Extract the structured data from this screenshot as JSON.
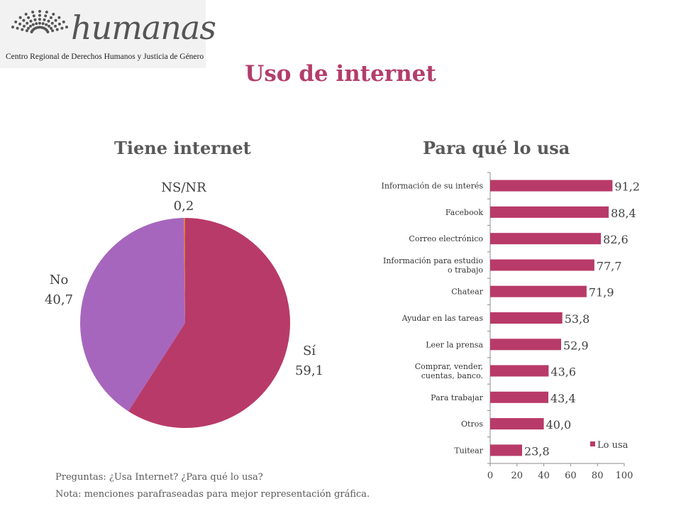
{
  "logo": {
    "word": "humanas",
    "subtitle": "Centro Regional de Derechos Humanos y Justicia de Género"
  },
  "title": "Uso de internet",
  "colors": {
    "title": "#b33d6b",
    "bar": "#b83a68",
    "pie_si": "#b83a68",
    "pie_no": "#a766bd",
    "pie_nsnr": "#e07b2a"
  },
  "notes": {
    "line1": "Preguntas: ¿Usa Internet? ¿Para qué lo usa?",
    "line2": "Nota: menciones parafraseadas para mejor representación gráfica."
  },
  "chart_data": [
    {
      "type": "pie",
      "title": "Tiene internet",
      "slices": [
        {
          "label": "Sí",
          "value": 59.1,
          "value_text": "59,1"
        },
        {
          "label": "No",
          "value": 40.7,
          "value_text": "40,7"
        },
        {
          "label": "NS/NR",
          "value": 0.2,
          "value_text": "0,2"
        }
      ]
    },
    {
      "type": "bar",
      "orientation": "horizontal",
      "title": "Para qué lo usa",
      "categories": [
        [
          "Información de su interés"
        ],
        [
          "Facebook"
        ],
        [
          "Correo electrónico"
        ],
        [
          "Información para estudio",
          "o trabajo"
        ],
        [
          "Chatear"
        ],
        [
          "Ayudar en las tareas"
        ],
        [
          "Leer la prensa"
        ],
        [
          "Comprar, vender,",
          "cuentas, banco."
        ],
        [
          "Para trabajar"
        ],
        [
          "Otros"
        ],
        [
          "Tuitear"
        ]
      ],
      "series": [
        {
          "name": "Lo usa",
          "values": [
            91.2,
            88.4,
            82.6,
            77.7,
            71.9,
            53.8,
            52.9,
            43.6,
            43.4,
            40.0,
            23.8
          ],
          "value_labels": [
            "91,2",
            "88,4",
            "82,6",
            "77,7",
            "71,9",
            "53,8",
            "52,9",
            "43,6",
            "43,4",
            "40,0",
            "23,8"
          ]
        }
      ],
      "xlim": [
        0,
        100
      ],
      "xticks": [
        "0",
        "20",
        "40",
        "60",
        "80",
        "100"
      ],
      "legend": "bottom-right"
    }
  ]
}
